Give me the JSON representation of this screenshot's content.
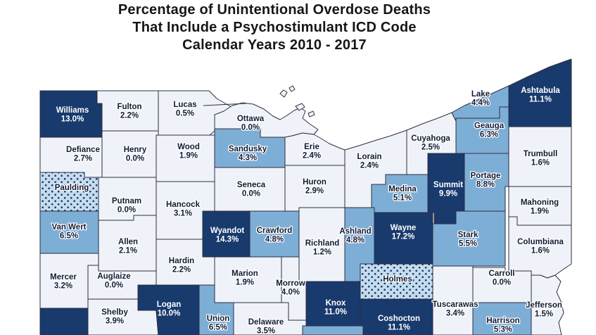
{
  "title": {
    "line1": "Percentage of Unintentional Overdose Deaths",
    "line2": "That Include a Psychostimulant ICD Code",
    "line3": "Calendar Years 2010 - 2017"
  },
  "map": {
    "colors": {
      "high": "#183A6D",
      "mid": "#7DAED6",
      "low": "#EFF3F9",
      "suppressed_fill": "#C6DCEE",
      "suppressed_dot": "#183A6D",
      "border": "#2E2E3E",
      "label_on_light": "#101A33",
      "label_on_dark": "#FFFFFF",
      "background": "#FFFFFF"
    },
    "counties": [
      {
        "key": "williams",
        "name": "Williams",
        "value": "13.0%",
        "category": "high"
      },
      {
        "key": "fulton",
        "name": "Fulton",
        "value": "2.2%",
        "category": "low"
      },
      {
        "key": "lucas",
        "name": "Lucas",
        "value": "0.5%",
        "category": "low"
      },
      {
        "key": "ottawa",
        "name": "Ottawa",
        "value": "0.0%",
        "category": "low"
      },
      {
        "key": "defiance",
        "name": "Defiance",
        "value": "2.7%",
        "category": "low"
      },
      {
        "key": "henry",
        "name": "Henry",
        "value": "0.0%",
        "category": "low"
      },
      {
        "key": "wood",
        "name": "Wood",
        "value": "1.9%",
        "category": "low"
      },
      {
        "key": "sandusky",
        "name": "Sandusky",
        "value": "4.3%",
        "category": "mid"
      },
      {
        "key": "erie",
        "name": "Erie",
        "value": "2.4%",
        "category": "low"
      },
      {
        "key": "lorain",
        "name": "Lorain",
        "value": "2.4%",
        "category": "low"
      },
      {
        "key": "cuyahoga",
        "name": "Cuyahoga",
        "value": "2.5%",
        "category": "low"
      },
      {
        "key": "lake",
        "name": "Lake",
        "value": "4.4%",
        "category": "mid"
      },
      {
        "key": "geauga",
        "name": "Geauga",
        "value": "6.3%",
        "category": "mid"
      },
      {
        "key": "ashtabula",
        "name": "Ashtabula",
        "value": "11.1%",
        "category": "high"
      },
      {
        "key": "trumbull",
        "name": "Trumbull",
        "value": "1.6%",
        "category": "low"
      },
      {
        "key": "portage",
        "name": "Portage",
        "value": "8.8%",
        "category": "mid"
      },
      {
        "key": "summit",
        "name": "Summit",
        "value": "9.9%",
        "category": "high"
      },
      {
        "key": "medina",
        "name": "Medina",
        "value": "5.1%",
        "category": "mid"
      },
      {
        "key": "mahoning",
        "name": "Mahoning",
        "value": "1.9%",
        "category": "low"
      },
      {
        "key": "columbiana",
        "name": "Columbiana",
        "value": "1.6%",
        "category": "low"
      },
      {
        "key": "stark",
        "name": "Stark",
        "value": "5.5%",
        "category": "mid"
      },
      {
        "key": "wayne",
        "name": "Wayne",
        "value": "17.2%",
        "category": "high"
      },
      {
        "key": "paulding",
        "name": "Paulding",
        "value": "",
        "category": "suppressed"
      },
      {
        "key": "putnam",
        "name": "Putnam",
        "value": "0.0%",
        "category": "low"
      },
      {
        "key": "hancock",
        "name": "Hancock",
        "value": "3.1%",
        "category": "low"
      },
      {
        "key": "seneca",
        "name": "Seneca",
        "value": "0.0%",
        "category": "low"
      },
      {
        "key": "huron",
        "name": "Huron",
        "value": "2.9%",
        "category": "low"
      },
      {
        "key": "vanwert",
        "name": "Van Wert",
        "value": "6.5%",
        "category": "mid"
      },
      {
        "key": "allen",
        "name": "Allen",
        "value": "2.1%",
        "category": "low"
      },
      {
        "key": "hardin",
        "name": "Hardin",
        "value": "2.2%",
        "category": "low"
      },
      {
        "key": "mercer",
        "name": "Mercer",
        "value": "3.2%",
        "category": "low"
      },
      {
        "key": "auglaize",
        "name": "Auglaize",
        "value": "0.0%",
        "category": "low"
      },
      {
        "key": "shelby",
        "name": "Shelby",
        "value": "3.9%",
        "category": "low"
      },
      {
        "key": "logan",
        "name": "Logan",
        "value": "10.0%",
        "category": "high"
      },
      {
        "key": "union",
        "name": "Union",
        "value": "6.5%",
        "category": "mid"
      },
      {
        "key": "wyandot",
        "name": "Wyandot",
        "value": "14.3%",
        "category": "high"
      },
      {
        "key": "crawford",
        "name": "Crawford",
        "value": "4.8%",
        "category": "mid"
      },
      {
        "key": "richland",
        "name": "Richland",
        "value": "1.2%",
        "category": "low"
      },
      {
        "key": "ashland",
        "name": "Ashland",
        "value": "4.8%",
        "category": "mid"
      },
      {
        "key": "marion",
        "name": "Marion",
        "value": "1.9%",
        "category": "low"
      },
      {
        "key": "morrow",
        "name": "Morrow",
        "value": "4.0%",
        "category": "low"
      },
      {
        "key": "holmes",
        "name": "Holmes",
        "value": "",
        "category": "suppressed"
      },
      {
        "key": "knox",
        "name": "Knox",
        "value": "11.0%",
        "category": "high"
      },
      {
        "key": "coshocton",
        "name": "Coshocton",
        "value": "11.1%",
        "category": "high"
      },
      {
        "key": "delaware",
        "name": "Delaware",
        "value": "3.5%",
        "category": "low"
      },
      {
        "key": "tuscarawas",
        "name": "Tuscarawas",
        "value": "3.4%",
        "category": "low"
      },
      {
        "key": "carroll",
        "name": "Carroll",
        "value": "0.0%",
        "category": "low"
      },
      {
        "key": "jefferson",
        "name": "Jefferson",
        "value": "1.5%",
        "category": "low"
      },
      {
        "key": "harrison",
        "name": "Harrison",
        "value": "5.3%",
        "category": "mid"
      },
      {
        "key": "darke",
        "name": "",
        "value": "",
        "category": "high"
      },
      {
        "key": "licking",
        "name": "",
        "value": "",
        "category": "mid"
      }
    ]
  },
  "chart_data": {
    "type": "choropleth",
    "title": "Percentage of Unintentional Overdose Deaths That Include a Psychostimulant ICD Code, Calendar Years 2010 - 2017",
    "region": "Ohio counties (northern portion visible)",
    "unit": "percent",
    "categories_legend": {
      "high": "dark navy (approx >= 9.9%)",
      "mid": "medium blue (approx 4.3% - 8.8%)",
      "low": "pale (0.0% - 4.0%)",
      "suppressed": "dotted pattern, no value shown"
    },
    "values": {
      "Williams": 13.0,
      "Fulton": 2.2,
      "Lucas": 0.5,
      "Ottawa": 0.0,
      "Defiance": 2.7,
      "Henry": 0.0,
      "Wood": 1.9,
      "Sandusky": 4.3,
      "Erie": 2.4,
      "Lorain": 2.4,
      "Cuyahoga": 2.5,
      "Lake": 4.4,
      "Geauga": 6.3,
      "Ashtabula": 11.1,
      "Trumbull": 1.6,
      "Portage": 8.8,
      "Summit": 9.9,
      "Medina": 5.1,
      "Mahoning": 1.9,
      "Columbiana": 1.6,
      "Stark": 5.5,
      "Wayne": 17.2,
      "Putnam": 0.0,
      "Hancock": 3.1,
      "Seneca": 0.0,
      "Huron": 2.9,
      "Van Wert": 6.5,
      "Allen": 2.1,
      "Hardin": 2.2,
      "Mercer": 3.2,
      "Auglaize": 0.0,
      "Shelby": 3.9,
      "Logan": 10.0,
      "Union": 6.5,
      "Wyandot": 14.3,
      "Crawford": 4.8,
      "Richland": 1.2,
      "Ashland": 4.8,
      "Marion": 1.9,
      "Morrow": 4.0,
      "Knox": 11.0,
      "Coshocton": 11.1,
      "Delaware": 3.5,
      "Tuscarawas": 3.4,
      "Carroll": 0.0,
      "Jefferson": 1.5,
      "Harrison": 5.3,
      "Paulding": null,
      "Holmes": null
    }
  }
}
